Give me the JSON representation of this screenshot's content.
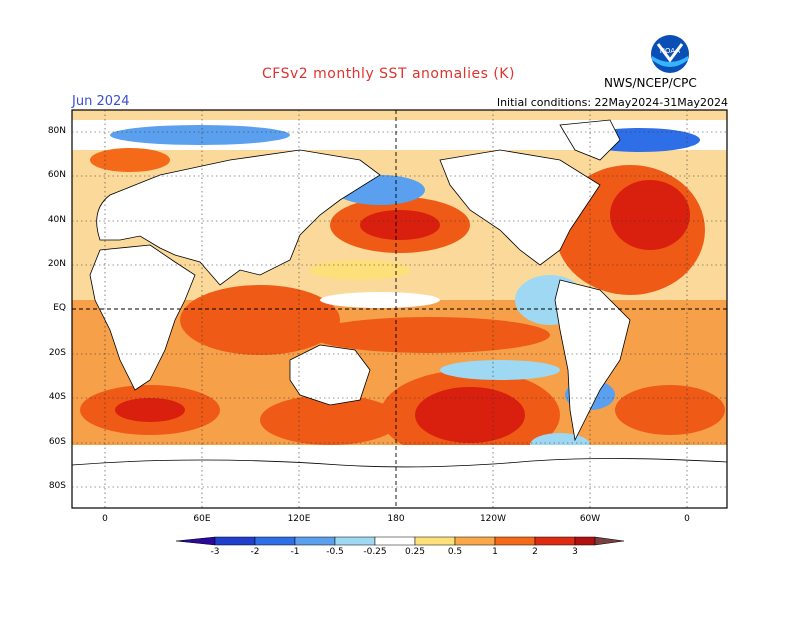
{
  "header": {
    "title": "CFSv2 monthly SST anomalies (K)",
    "month": "Jun 2024",
    "initial_conditions": "Initial conditions: 22May2024-31May2024",
    "agency": "NWS/NCEP/CPC"
  },
  "map": {
    "lat_labels": [
      "80N",
      "60N",
      "40N",
      "20N",
      "EQ",
      "20S",
      "40S",
      "60S",
      "80S"
    ],
    "lon_labels": [
      "0",
      "60E",
      "120E",
      "180",
      "120W",
      "60W",
      "0"
    ]
  },
  "colorbar": {
    "labels": [
      "-3",
      "-2",
      "-1",
      "-0.5",
      "-0.25",
      "0.25",
      "0.5",
      "1",
      "2",
      "3"
    ],
    "colors": [
      "#2a0a9a",
      "#1f3fcc",
      "#2e6ee6",
      "#5aa0ee",
      "#9fd8f2",
      "#ffffff",
      "#fde07a",
      "#fba84a",
      "#f56a18",
      "#df2a12",
      "#b01010",
      "#7a4040"
    ]
  }
}
